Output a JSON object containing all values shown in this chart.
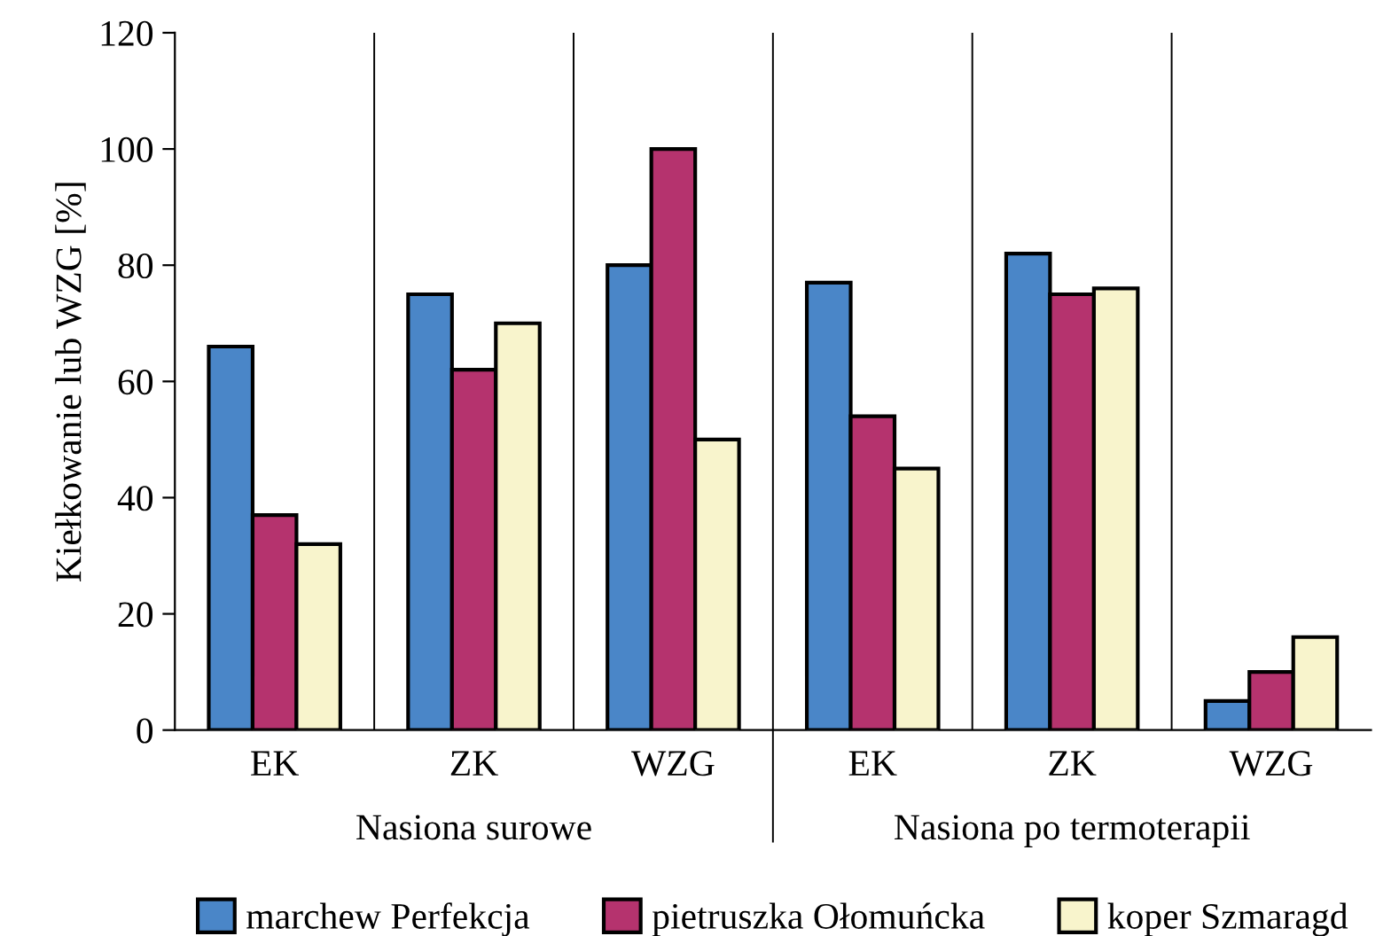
{
  "chart_data": {
    "type": "bar",
    "ylabel": "Kiełkowanie lub WZG [%]",
    "categories": [
      "EK",
      "ZK",
      "WZG",
      "EK",
      "ZK",
      "WZG"
    ],
    "series": [
      {
        "name": "marchew Perfekcja",
        "color": "#4a86c8",
        "values": [
          66,
          75,
          80,
          77,
          82,
          5
        ]
      },
      {
        "name": "pietruszka Ołomuńcka",
        "color": "#b5336e",
        "values": [
          37,
          62,
          100,
          54,
          75,
          10
        ]
      },
      {
        "name": "koper Szmaragd",
        "color": "#f8f4cc",
        "values": [
          32,
          70,
          50,
          45,
          76,
          16
        ]
      }
    ],
    "ylim": [
      0,
      120
    ],
    "yticks": [
      0,
      20,
      40,
      60,
      80,
      100,
      120
    ],
    "grid": "x",
    "legend": "bottom",
    "annotations": [
      "Nasiona surowe",
      "Nasiona po termoterapii"
    ]
  }
}
